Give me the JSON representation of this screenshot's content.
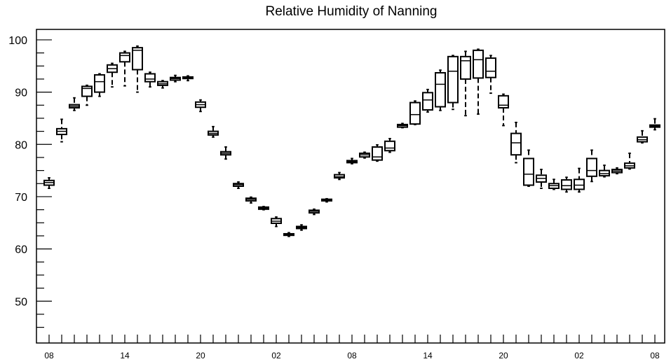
{
  "chart_data": {
    "type": "boxplot",
    "title": "Relative Humidity of Nanning",
    "xlabel": "",
    "ylabel": "",
    "ylim": [
      42,
      102
    ],
    "yticks": [
      50,
      60,
      70,
      80,
      90,
      100
    ],
    "xtick_labels": [
      "08",
      "14",
      "20",
      "02",
      "08",
      "14",
      "20",
      "02",
      "08"
    ],
    "grid": false,
    "legend": "none",
    "colors": {
      "stroke": "#000000",
      "background": "#ffffff"
    },
    "boxes": [
      {
        "x": 0,
        "min": 71.6,
        "q1": 72.2,
        "median": 72.7,
        "q3": 73.1,
        "max": 73.6
      },
      {
        "x": 1,
        "min": 80.5,
        "q1": 81.9,
        "median": 82.5,
        "q3": 83.0,
        "max": 84.8
      },
      {
        "x": 2,
        "min": 86.5,
        "q1": 87.0,
        "median": 87.3,
        "q3": 87.6,
        "max": 88.9
      },
      {
        "x": 3,
        "min": 87.5,
        "q1": 89.2,
        "median": 90.7,
        "q3": 91.1,
        "max": 91.3
      },
      {
        "x": 4,
        "min": 89.2,
        "q1": 90.0,
        "median": 92.0,
        "q3": 93.3,
        "max": 93.5
      },
      {
        "x": 5,
        "min": 91.0,
        "q1": 93.8,
        "median": 94.5,
        "q3": 95.2,
        "max": 95.5
      },
      {
        "x": 6,
        "min": 91.2,
        "q1": 95.8,
        "median": 97.0,
        "q3": 97.5,
        "max": 97.8
      },
      {
        "x": 7,
        "min": 90.0,
        "q1": 94.3,
        "median": 98.0,
        "q3": 98.5,
        "max": 98.8
      },
      {
        "x": 8,
        "min": 91.0,
        "q1": 92.0,
        "median": 92.5,
        "q3": 93.5,
        "max": 93.8
      },
      {
        "x": 9,
        "min": 90.8,
        "q1": 91.3,
        "median": 91.6,
        "q3": 92.0,
        "max": 92.2
      },
      {
        "x": 10,
        "min": 92.0,
        "q1": 92.3,
        "median": 92.6,
        "q3": 92.8,
        "max": 93.2
      },
      {
        "x": 11,
        "min": 92.2,
        "q1": 92.6,
        "median": 92.8,
        "q3": 92.9,
        "max": 93.1
      },
      {
        "x": 12,
        "min": 86.3,
        "q1": 87.1,
        "median": 87.6,
        "q3": 88.1,
        "max": 88.5
      },
      {
        "x": 13,
        "min": 81.4,
        "q1": 81.8,
        "median": 82.1,
        "q3": 82.5,
        "max": 83.4
      },
      {
        "x": 14,
        "min": 77.2,
        "q1": 78.0,
        "median": 78.3,
        "q3": 78.6,
        "max": 79.5
      },
      {
        "x": 15,
        "min": 71.6,
        "q1": 72.0,
        "median": 72.3,
        "q3": 72.5,
        "max": 72.8
      },
      {
        "x": 16,
        "min": 68.8,
        "q1": 69.2,
        "median": 69.5,
        "q3": 69.7,
        "max": 69.9
      },
      {
        "x": 17,
        "min": 67.5,
        "q1": 67.6,
        "median": 67.8,
        "q3": 68.0,
        "max": 68.1
      },
      {
        "x": 18,
        "min": 64.3,
        "q1": 64.9,
        "median": 65.3,
        "q3": 65.8,
        "max": 66.1
      },
      {
        "x": 19,
        "min": 62.4,
        "q1": 62.6,
        "median": 62.8,
        "q3": 62.9,
        "max": 63.1
      },
      {
        "x": 20,
        "min": 63.6,
        "q1": 63.9,
        "median": 64.1,
        "q3": 64.3,
        "max": 64.6
      },
      {
        "x": 21,
        "min": 66.6,
        "q1": 66.9,
        "median": 67.2,
        "q3": 67.4,
        "max": 67.6
      },
      {
        "x": 22,
        "min": 69.0,
        "q1": 69.2,
        "median": 69.3,
        "q3": 69.5,
        "max": 69.6
      },
      {
        "x": 23,
        "min": 73.3,
        "q1": 73.6,
        "median": 73.8,
        "q3": 74.2,
        "max": 74.6
      },
      {
        "x": 24,
        "min": 76.3,
        "q1": 76.5,
        "median": 76.7,
        "q3": 76.9,
        "max": 77.3
      },
      {
        "x": 25,
        "min": 77.4,
        "q1": 77.6,
        "median": 78.0,
        "q3": 78.3,
        "max": 78.5
      },
      {
        "x": 26,
        "min": 76.8,
        "q1": 77.0,
        "median": 77.6,
        "q3": 79.5,
        "max": 79.9
      },
      {
        "x": 27,
        "min": 78.5,
        "q1": 78.8,
        "median": 79.3,
        "q3": 80.6,
        "max": 81.1
      },
      {
        "x": 28,
        "min": 83.2,
        "q1": 83.3,
        "median": 83.6,
        "q3": 83.8,
        "max": 84.0
      },
      {
        "x": 29,
        "min": 83.8,
        "q1": 83.9,
        "median": 85.7,
        "q3": 88.0,
        "max": 88.3
      },
      {
        "x": 30,
        "min": 86.2,
        "q1": 86.6,
        "median": 88.5,
        "q3": 89.9,
        "max": 90.5
      },
      {
        "x": 31,
        "min": 86.5,
        "q1": 87.2,
        "median": 91.5,
        "q3": 93.7,
        "max": 94.2
      },
      {
        "x": 32,
        "min": 86.7,
        "q1": 88.0,
        "median": 94.0,
        "q3": 96.8,
        "max": 97.0
      },
      {
        "x": 33,
        "min": 85.5,
        "q1": 92.5,
        "median": 96.0,
        "q3": 96.8,
        "max": 97.8
      },
      {
        "x": 34,
        "min": 85.8,
        "q1": 92.7,
        "median": 96.2,
        "q3": 98.0,
        "max": 98.2
      },
      {
        "x": 35,
        "min": 89.8,
        "q1": 92.8,
        "median": 94.0,
        "q3": 96.5,
        "max": 97.0
      },
      {
        "x": 36,
        "min": 83.6,
        "q1": 87.0,
        "median": 87.5,
        "q3": 89.3,
        "max": 89.6
      },
      {
        "x": 37,
        "min": 76.5,
        "q1": 78.0,
        "median": 80.3,
        "q3": 82.1,
        "max": 84.2
      },
      {
        "x": 38,
        "min": 72.0,
        "q1": 72.2,
        "median": 74.3,
        "q3": 77.3,
        "max": 78.9
      },
      {
        "x": 39,
        "min": 71.6,
        "q1": 72.8,
        "median": 73.5,
        "q3": 74.1,
        "max": 75.2
      },
      {
        "x": 40,
        "min": 71.4,
        "q1": 71.6,
        "median": 72.1,
        "q3": 72.5,
        "max": 73.3
      },
      {
        "x": 41,
        "min": 70.9,
        "q1": 71.4,
        "median": 72.1,
        "q3": 73.2,
        "max": 73.7
      },
      {
        "x": 42,
        "min": 70.9,
        "q1": 71.4,
        "median": 72.2,
        "q3": 73.3,
        "max": 75.4
      },
      {
        "x": 43,
        "min": 72.9,
        "q1": 73.9,
        "median": 75.0,
        "q3": 77.3,
        "max": 78.9
      },
      {
        "x": 44,
        "min": 73.8,
        "q1": 74.0,
        "median": 74.4,
        "q3": 75.0,
        "max": 76.0
      },
      {
        "x": 45,
        "min": 74.4,
        "q1": 74.6,
        "median": 74.9,
        "q3": 75.2,
        "max": 75.5
      },
      {
        "x": 46,
        "min": 75.3,
        "q1": 75.5,
        "median": 75.9,
        "q3": 76.4,
        "max": 78.3
      },
      {
        "x": 47,
        "min": 80.3,
        "q1": 80.5,
        "median": 80.9,
        "q3": 81.4,
        "max": 82.6
      },
      {
        "x": 48,
        "min": 82.8,
        "q1": 83.3,
        "median": 83.5,
        "q3": 83.7,
        "max": 84.9
      }
    ]
  }
}
